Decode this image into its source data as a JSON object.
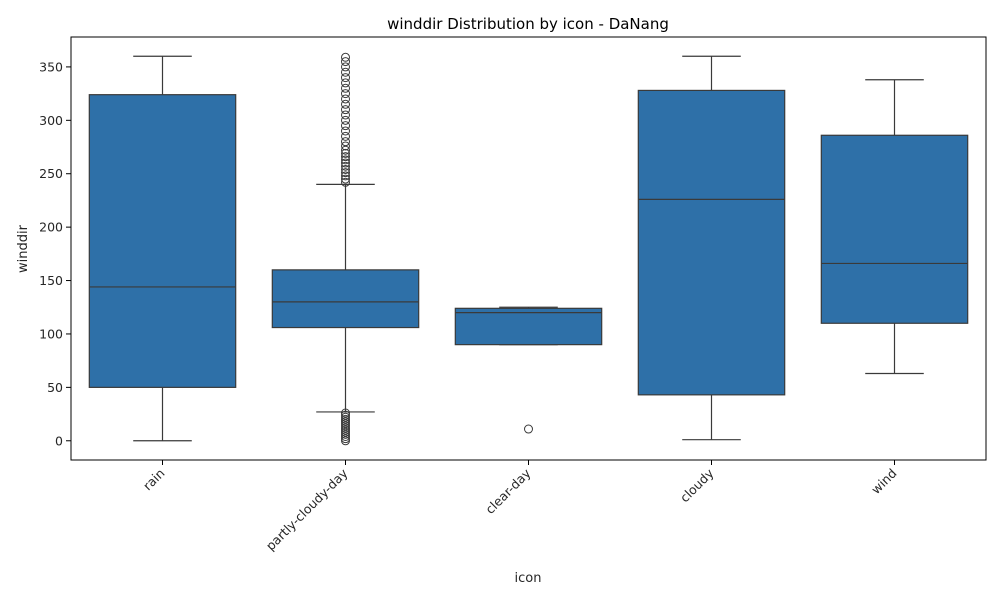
{
  "chart_data": {
    "type": "box",
    "title": "winddir Distribution by icon - DaNang",
    "xlabel": "icon",
    "ylabel": "winddir",
    "ylim": [
      -18,
      378
    ],
    "yticks": [
      0,
      50,
      100,
      150,
      200,
      250,
      300,
      350
    ],
    "categories": [
      "rain",
      "partly-cloudy-day",
      "clear-day",
      "cloudy",
      "wind"
    ],
    "box_color": "#2e70a8",
    "line_color": "#3a3a3a",
    "boxes": [
      {
        "category": "rain",
        "whisker_low": 0,
        "q1": 50,
        "median": 144,
        "q3": 324,
        "whisker_high": 360,
        "outliers": []
      },
      {
        "category": "partly-cloudy-day",
        "whisker_low": 27,
        "q1": 106,
        "median": 130,
        "q3": 160,
        "whisker_high": 240,
        "outliers": [
          0,
          2,
          4,
          6,
          8,
          10,
          12,
          14,
          16,
          18,
          20,
          22,
          24,
          26,
          242,
          245,
          248,
          251,
          254,
          257,
          260,
          263,
          266,
          269,
          272,
          276,
          280,
          285,
          290,
          295,
          300,
          305,
          310,
          315,
          320,
          325,
          330,
          335,
          340,
          345,
          350,
          355,
          359
        ]
      },
      {
        "category": "clear-day",
        "whisker_low": 90,
        "q1": 90,
        "median": 120,
        "q3": 124,
        "whisker_high": 125,
        "outliers": [
          11
        ]
      },
      {
        "category": "cloudy",
        "whisker_low": 1,
        "q1": 43,
        "median": 226,
        "q3": 328,
        "whisker_high": 360,
        "outliers": []
      },
      {
        "category": "wind",
        "whisker_low": 63,
        "q1": 110,
        "median": 166,
        "q3": 286,
        "whisker_high": 338,
        "outliers": []
      }
    ]
  }
}
